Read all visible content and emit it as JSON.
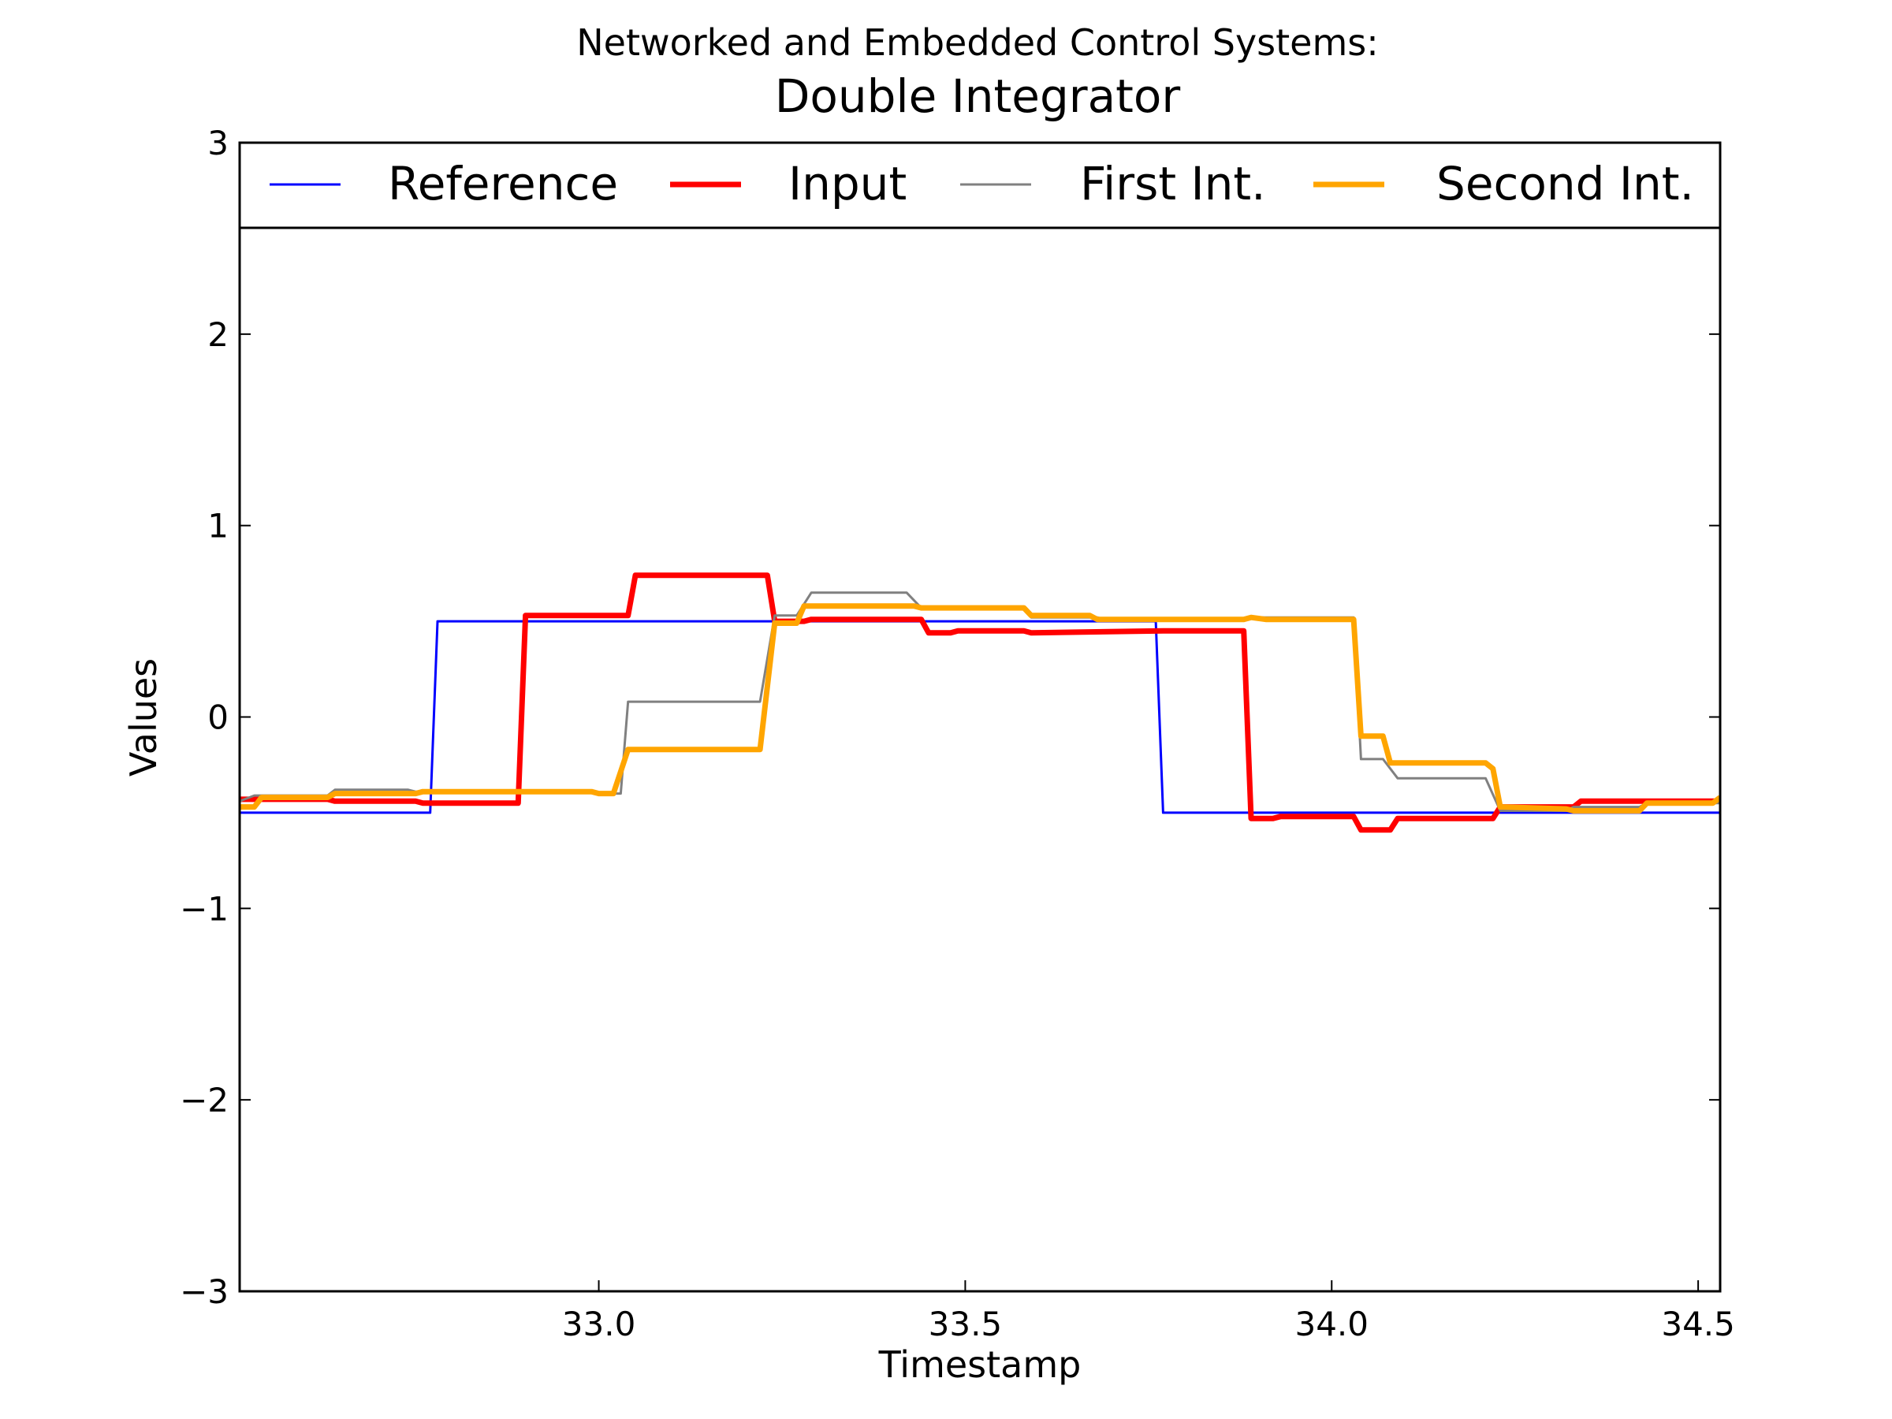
{
  "chart_data": {
    "type": "line",
    "title": "Networked and Embedded Control Systems:",
    "subtitle": "Double Integrator",
    "xlabel": "Timestamp",
    "ylabel": "Values",
    "xlim": [
      32.51,
      34.53
    ],
    "ylim": [
      -3,
      3
    ],
    "xticks": [
      33.0,
      33.5,
      34.0,
      34.5
    ],
    "xtick_labels": [
      "33.0",
      "33.5",
      "34.0",
      "34.5"
    ],
    "yticks": [
      -3,
      -2,
      -1,
      0,
      1,
      2,
      3
    ],
    "ytick_labels": [
      "−3",
      "−2",
      "−1",
      "0",
      "1",
      "2",
      "3"
    ],
    "grid": false,
    "legend_position": "top",
    "series": [
      {
        "name": "Reference",
        "color": "#0000ff",
        "style": "thin",
        "points": [
          [
            32.51,
            -0.5
          ],
          [
            32.77,
            -0.5
          ],
          [
            32.78,
            0.5
          ],
          [
            33.76,
            0.5
          ],
          [
            33.77,
            -0.5
          ],
          [
            34.53,
            -0.5
          ]
        ]
      },
      {
        "name": "Input",
        "color": "#ff0000",
        "style": "thick",
        "points": [
          [
            32.51,
            -0.43
          ],
          [
            32.63,
            -0.43
          ],
          [
            32.64,
            -0.44
          ],
          [
            32.75,
            -0.44
          ],
          [
            32.76,
            -0.45
          ],
          [
            32.89,
            -0.45
          ],
          [
            32.9,
            0.53
          ],
          [
            33.04,
            0.53
          ],
          [
            33.05,
            0.74
          ],
          [
            33.23,
            0.74
          ],
          [
            33.24,
            0.5
          ],
          [
            33.28,
            0.5
          ],
          [
            33.29,
            0.51
          ],
          [
            33.44,
            0.51
          ],
          [
            33.45,
            0.44
          ],
          [
            33.48,
            0.44
          ],
          [
            33.49,
            0.45
          ],
          [
            33.58,
            0.45
          ],
          [
            33.59,
            0.44
          ],
          [
            33.77,
            0.45
          ],
          [
            33.88,
            0.45
          ],
          [
            33.89,
            -0.53
          ],
          [
            33.92,
            -0.53
          ],
          [
            33.93,
            -0.52
          ],
          [
            34.03,
            -0.52
          ],
          [
            34.04,
            -0.59
          ],
          [
            34.08,
            -0.59
          ],
          [
            34.09,
            -0.53
          ],
          [
            34.22,
            -0.53
          ],
          [
            34.23,
            -0.47
          ],
          [
            34.33,
            -0.47
          ],
          [
            34.34,
            -0.44
          ],
          [
            34.53,
            -0.44
          ]
        ]
      },
      {
        "name": "First Int.",
        "color": "#808080",
        "style": "thin",
        "points": [
          [
            32.51,
            -0.44
          ],
          [
            32.53,
            -0.41
          ],
          [
            32.63,
            -0.41
          ],
          [
            32.64,
            -0.38
          ],
          [
            32.74,
            -0.38
          ],
          [
            32.75,
            -0.39
          ],
          [
            32.99,
            -0.39
          ],
          [
            33.01,
            -0.4
          ],
          [
            33.03,
            -0.4
          ],
          [
            33.04,
            0.08
          ],
          [
            33.22,
            0.08
          ],
          [
            33.24,
            0.53
          ],
          [
            33.27,
            0.53
          ],
          [
            33.29,
            0.65
          ],
          [
            33.42,
            0.65
          ],
          [
            33.44,
            0.57
          ],
          [
            33.58,
            0.57
          ],
          [
            33.59,
            0.52
          ],
          [
            33.68,
            0.52
          ],
          [
            33.69,
            0.51
          ],
          [
            33.77,
            0.51
          ],
          [
            33.88,
            0.51
          ],
          [
            33.89,
            0.52
          ],
          [
            34.03,
            0.52
          ],
          [
            34.04,
            -0.22
          ],
          [
            34.07,
            -0.22
          ],
          [
            34.09,
            -0.32
          ],
          [
            34.21,
            -0.32
          ],
          [
            34.23,
            -0.49
          ],
          [
            34.32,
            -0.49
          ],
          [
            34.33,
            -0.47
          ],
          [
            34.42,
            -0.47
          ],
          [
            34.43,
            -0.45
          ],
          [
            34.53,
            -0.45
          ]
        ]
      },
      {
        "name": "Second Int.",
        "color": "#ffa500",
        "style": "thick",
        "points": [
          [
            32.51,
            -0.47
          ],
          [
            32.53,
            -0.47
          ],
          [
            32.54,
            -0.42
          ],
          [
            32.63,
            -0.42
          ],
          [
            32.64,
            -0.4
          ],
          [
            32.75,
            -0.4
          ],
          [
            32.76,
            -0.39
          ],
          [
            32.99,
            -0.39
          ],
          [
            33.0,
            -0.4
          ],
          [
            33.02,
            -0.4
          ],
          [
            33.04,
            -0.17
          ],
          [
            33.22,
            -0.17
          ],
          [
            33.24,
            0.49
          ],
          [
            33.27,
            0.49
          ],
          [
            33.28,
            0.58
          ],
          [
            33.43,
            0.58
          ],
          [
            33.44,
            0.57
          ],
          [
            33.58,
            0.57
          ],
          [
            33.59,
            0.53
          ],
          [
            33.67,
            0.53
          ],
          [
            33.68,
            0.51
          ],
          [
            33.88,
            0.51
          ],
          [
            33.89,
            0.52
          ],
          [
            33.91,
            0.51
          ],
          [
            34.03,
            0.51
          ],
          [
            34.04,
            -0.1
          ],
          [
            34.07,
            -0.1
          ],
          [
            34.08,
            -0.24
          ],
          [
            34.21,
            -0.24
          ],
          [
            34.22,
            -0.27
          ],
          [
            34.23,
            -0.47
          ],
          [
            34.32,
            -0.48
          ],
          [
            34.33,
            -0.49
          ],
          [
            34.42,
            -0.49
          ],
          [
            34.43,
            -0.45
          ],
          [
            34.52,
            -0.45
          ],
          [
            34.53,
            -0.42
          ]
        ]
      }
    ]
  }
}
